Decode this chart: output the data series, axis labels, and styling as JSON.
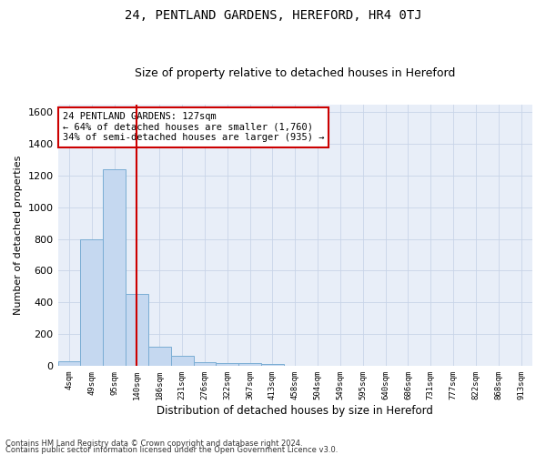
{
  "title": "24, PENTLAND GARDENS, HEREFORD, HR4 0TJ",
  "subtitle": "Size of property relative to detached houses in Hereford",
  "xlabel": "Distribution of detached houses by size in Hereford",
  "ylabel": "Number of detached properties",
  "footer_line1": "Contains HM Land Registry data © Crown copyright and database right 2024.",
  "footer_line2": "Contains public sector information licensed under the Open Government Licence v3.0.",
  "bar_labels": [
    "4sqm",
    "49sqm",
    "95sqm",
    "140sqm",
    "186sqm",
    "231sqm",
    "276sqm",
    "322sqm",
    "367sqm",
    "413sqm",
    "458sqm",
    "504sqm",
    "549sqm",
    "595sqm",
    "640sqm",
    "686sqm",
    "731sqm",
    "777sqm",
    "822sqm",
    "868sqm",
    "913sqm"
  ],
  "bar_values": [
    25,
    800,
    1240,
    455,
    120,
    60,
    22,
    18,
    15,
    8,
    0,
    0,
    0,
    0,
    0,
    0,
    0,
    0,
    0,
    0,
    0
  ],
  "bar_color": "#c5d8f0",
  "bar_edge_color": "#7aadd4",
  "ylim": [
    0,
    1650
  ],
  "yticks": [
    0,
    200,
    400,
    600,
    800,
    1000,
    1200,
    1400,
    1600
  ],
  "property_line_x": 3.0,
  "property_line_color": "#cc0000",
  "annotation_text": "24 PENTLAND GARDENS: 127sqm\n← 64% of detached houses are smaller (1,760)\n34% of semi-detached houses are larger (935) →",
  "annotation_box_facecolor": "#ffffff",
  "annotation_box_edgecolor": "#cc0000",
  "grid_color": "#c8d4e8",
  "background_color": "#e8eef8",
  "title_fontsize": 10,
  "subtitle_fontsize": 9
}
